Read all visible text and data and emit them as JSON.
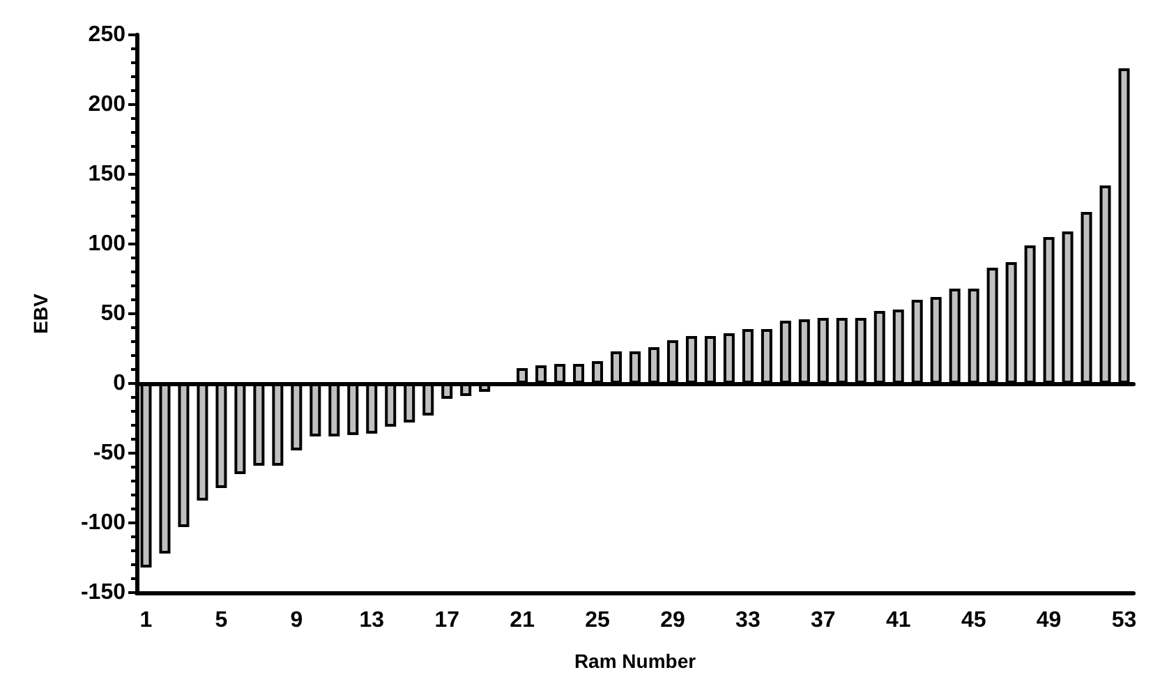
{
  "chart_data": {
    "type": "bar",
    "xlabel": "Ram Number",
    "ylabel": "EBV",
    "categories": [
      "1",
      null,
      null,
      null,
      "5",
      null,
      null,
      null,
      "9",
      null,
      null,
      null,
      "13",
      null,
      null,
      null,
      "17",
      null,
      null,
      null,
      "21",
      null,
      null,
      null,
      "25",
      null,
      null,
      null,
      "29",
      null,
      null,
      null,
      "33",
      null,
      null,
      null,
      "37",
      null,
      null,
      null,
      "41",
      null,
      null,
      null,
      "45",
      null,
      null,
      null,
      "49",
      null,
      null,
      null,
      "53"
    ],
    "values": [
      -132,
      -122,
      -103,
      -84,
      -75,
      -65,
      -59,
      -59,
      -48,
      -38,
      -38,
      -37,
      -36,
      -31,
      -28,
      -23,
      -11,
      -9,
      -6,
      null,
      11,
      13,
      14,
      14,
      16,
      23,
      23,
      26,
      31,
      34,
      34,
      36,
      39,
      39,
      45,
      46,
      47,
      47,
      47,
      52,
      53,
      60,
      62,
      68,
      68,
      83,
      87,
      99,
      105,
      109,
      123,
      142,
      226
    ],
    "color": "#c0c0c0",
    "ylim": [
      -150,
      250
    ],
    "yticks": [
      -150,
      -100,
      -50,
      0,
      50,
      100,
      150,
      200,
      250
    ]
  }
}
